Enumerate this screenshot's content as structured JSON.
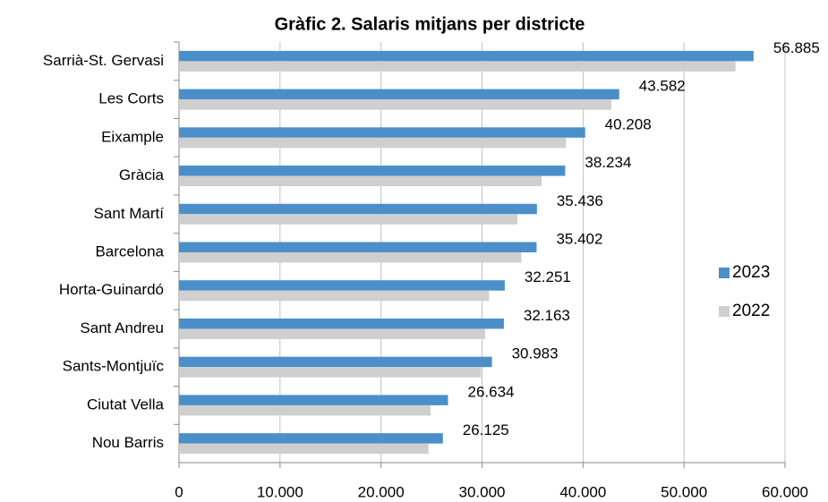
{
  "chart_data": {
    "type": "hbar",
    "title": "Gràfic 2. Salaris mitjans per districte",
    "categories": [
      "Sarrià-St. Gervasi",
      "Les Corts",
      "Eixample",
      "Gràcia",
      "Sant Martí",
      "Barcelona",
      "Horta-Guinardó",
      "Sant Andreu",
      "Sants-Montjuïc",
      "Ciutat Vella",
      "Nou Barris"
    ],
    "series": [
      {
        "name": "2023",
        "color": "#4a8fc9",
        "values": [
          56885,
          43582,
          40208,
          38234,
          35436,
          35402,
          32251,
          32163,
          30983,
          26634,
          26125
        ],
        "value_labels": [
          "56.885",
          "43.582",
          "40.208",
          "38.234",
          "35.436",
          "35.402",
          "32.251",
          "32.163",
          "30.983",
          "26.634",
          "26.125"
        ]
      },
      {
        "name": "2022",
        "color": "#cfcfcf",
        "values": [
          55100,
          42800,
          38300,
          35900,
          33500,
          33900,
          30700,
          30300,
          29900,
          24900,
          24700
        ]
      }
    ],
    "xlim": [
      0,
      60000
    ],
    "xticks": [
      0,
      {
        "value": 10000,
        "label": "10.000"
      },
      {
        "value": 20000,
        "label": "20.000"
      },
      {
        "value": 30000,
        "label": "30.000"
      },
      {
        "value": 40000,
        "label": "40.000"
      },
      {
        "value": 50000,
        "label": "50.000"
      },
      {
        "value": 60000,
        "label": "60.000"
      }
    ],
    "grid": true,
    "legend": "right"
  }
}
